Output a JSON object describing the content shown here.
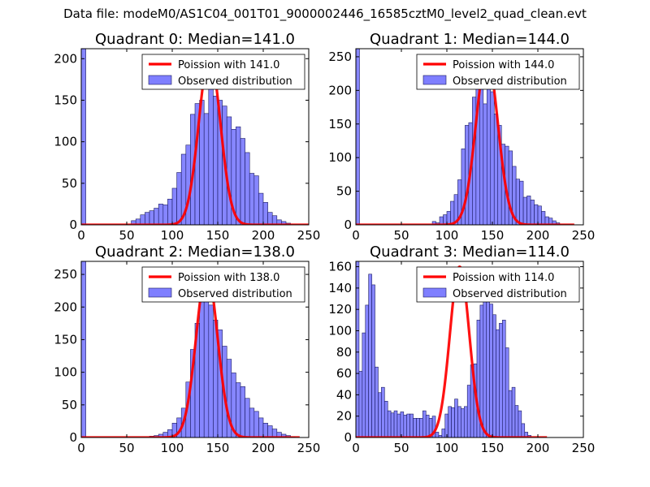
{
  "figure_title": "Data file: modeM0/AS1C04_001T01_9000002446_16585cztM0_level2_quad_clean.evt",
  "colors": {
    "poisson": "#ff0000",
    "bars_fill": "#7f7fff",
    "bars_edge": "#1a1a5e"
  },
  "chart_data": [
    {
      "type": "bar",
      "title": "Quadrant 0: Median=141.0",
      "xlim": [
        0,
        250
      ],
      "ylim": [
        0,
        212
      ],
      "xticks": [
        "0",
        "50",
        "100",
        "150",
        "200",
        "250"
      ],
      "yticks": [
        "0",
        "50",
        "100",
        "150",
        "200"
      ],
      "legend": {
        "position": "top-right",
        "line_label": "Poission with 141.0",
        "bar_label": "Observed distribution"
      },
      "poisson_mean": 141.0,
      "poisson_peak": 203,
      "poisson_range": [
        0,
        250
      ],
      "bin_width": 5,
      "bins": [
        [
          0,
          212
        ],
        [
          55,
          5
        ],
        [
          60,
          7
        ],
        [
          65,
          12
        ],
        [
          70,
          15
        ],
        [
          75,
          17
        ],
        [
          80,
          20
        ],
        [
          85,
          25
        ],
        [
          90,
          24
        ],
        [
          95,
          31
        ],
        [
          100,
          44
        ],
        [
          105,
          63
        ],
        [
          110,
          85
        ],
        [
          115,
          96
        ],
        [
          120,
          133
        ],
        [
          125,
          146
        ],
        [
          130,
          150
        ],
        [
          135,
          134
        ],
        [
          140,
          170
        ],
        [
          145,
          155
        ],
        [
          150,
          150
        ],
        [
          155,
          143
        ],
        [
          160,
          130
        ],
        [
          165,
          115
        ],
        [
          170,
          118
        ],
        [
          175,
          104
        ],
        [
          180,
          87
        ],
        [
          185,
          62
        ],
        [
          190,
          59
        ],
        [
          195,
          38
        ],
        [
          200,
          27
        ],
        [
          205,
          15
        ],
        [
          210,
          11
        ],
        [
          215,
          6
        ],
        [
          220,
          4
        ],
        [
          225,
          2
        ]
      ]
    },
    {
      "type": "bar",
      "title": "Quadrant 1: Median=144.0",
      "xlim": [
        0,
        250
      ],
      "ylim": [
        0,
        262
      ],
      "xticks": [
        "0",
        "50",
        "100",
        "150",
        "200",
        "250"
      ],
      "yticks": [
        "0",
        "50",
        "100",
        "150",
        "200",
        "250"
      ],
      "legend": {
        "position": "top-right",
        "line_label": "Poission with 144.0",
        "bar_label": "Observed distribution"
      },
      "poisson_mean": 144.0,
      "poisson_peak": 250,
      "poisson_range": [
        0,
        240
      ],
      "bin_width": 4,
      "bins": [
        [
          0,
          262
        ],
        [
          84,
          5
        ],
        [
          88,
          3
        ],
        [
          92,
          12
        ],
        [
          96,
          15
        ],
        [
          100,
          20
        ],
        [
          104,
          35
        ],
        [
          108,
          45
        ],
        [
          112,
          67
        ],
        [
          116,
          113
        ],
        [
          120,
          148
        ],
        [
          124,
          152
        ],
        [
          128,
          190
        ],
        [
          132,
          212
        ],
        [
          136,
          230
        ],
        [
          140,
          180
        ],
        [
          144,
          210
        ],
        [
          148,
          198
        ],
        [
          152,
          165
        ],
        [
          156,
          148
        ],
        [
          160,
          120
        ],
        [
          164,
          117
        ],
        [
          168,
          110
        ],
        [
          172,
          87
        ],
        [
          176,
          68
        ],
        [
          180,
          65
        ],
        [
          184,
          41
        ],
        [
          188,
          43
        ],
        [
          192,
          37
        ],
        [
          196,
          30
        ],
        [
          200,
          28
        ],
        [
          204,
          20
        ],
        [
          208,
          12
        ],
        [
          212,
          10
        ],
        [
          216,
          6
        ],
        [
          220,
          3
        ]
      ]
    },
    {
      "type": "bar",
      "title": "Quadrant 2: Median=138.0",
      "xlim": [
        0,
        250
      ],
      "ylim": [
        0,
        270
      ],
      "xticks": [
        "0",
        "50",
        "100",
        "150",
        "200",
        "250"
      ],
      "yticks": [
        "0",
        "50",
        "100",
        "150",
        "200",
        "250"
      ],
      "legend": {
        "position": "top-right",
        "line_label": "Poission with 138.0",
        "bar_label": "Observed distribution"
      },
      "poisson_mean": 138.0,
      "poisson_peak": 255,
      "poisson_range": [
        0,
        240
      ],
      "bin_width": 5,
      "bins": [
        [
          0,
          270
        ],
        [
          75,
          2
        ],
        [
          80,
          3
        ],
        [
          85,
          5
        ],
        [
          90,
          8
        ],
        [
          95,
          12
        ],
        [
          100,
          22
        ],
        [
          105,
          30
        ],
        [
          110,
          45
        ],
        [
          115,
          85
        ],
        [
          120,
          135
        ],
        [
          125,
          175
        ],
        [
          130,
          217
        ],
        [
          135,
          230
        ],
        [
          140,
          203
        ],
        [
          145,
          180
        ],
        [
          150,
          165
        ],
        [
          155,
          140
        ],
        [
          160,
          120
        ],
        [
          165,
          99
        ],
        [
          170,
          84
        ],
        [
          175,
          78
        ],
        [
          180,
          60
        ],
        [
          185,
          45
        ],
        [
          190,
          40
        ],
        [
          195,
          30
        ],
        [
          200,
          22
        ],
        [
          205,
          18
        ],
        [
          210,
          13
        ],
        [
          215,
          8
        ],
        [
          220,
          5
        ],
        [
          225,
          3
        ],
        [
          230,
          1
        ]
      ]
    },
    {
      "type": "bar",
      "title": "Quadrant 3: Median=114.0",
      "xlim": [
        0,
        250
      ],
      "ylim": [
        0,
        165
      ],
      "xticks": [
        "0",
        "50",
        "100",
        "150",
        "200",
        "250"
      ],
      "yticks": [
        "0",
        "20",
        "40",
        "60",
        "80",
        "100",
        "120",
        "140",
        "160"
      ],
      "legend": {
        "position": "top-right",
        "line_label": "Poission with 114.0",
        "bar_label": "Observed distribution"
      },
      "poisson_mean": 114.0,
      "poisson_peak": 160,
      "poisson_range": [
        0,
        210
      ],
      "bin_width": 3.5,
      "bins": [
        [
          0,
          165
        ],
        [
          3.5,
          62
        ],
        [
          7,
          98
        ],
        [
          10.5,
          124
        ],
        [
          14,
          153
        ],
        [
          17.5,
          143
        ],
        [
          21,
          66
        ],
        [
          24.5,
          42
        ],
        [
          28,
          47
        ],
        [
          31.5,
          34
        ],
        [
          35,
          25
        ],
        [
          38.5,
          23
        ],
        [
          42,
          25
        ],
        [
          45.5,
          22
        ],
        [
          49,
          24
        ],
        [
          52.5,
          21
        ],
        [
          56,
          22
        ],
        [
          59.5,
          22
        ],
        [
          63,
          18
        ],
        [
          66.5,
          18
        ],
        [
          70,
          18
        ],
        [
          73.5,
          25
        ],
        [
          77,
          21
        ],
        [
          80.5,
          18
        ],
        [
          84,
          20
        ],
        [
          87.5,
          5
        ],
        [
          91,
          2
        ],
        [
          94.5,
          8
        ],
        [
          98,
          22
        ],
        [
          101.5,
          29
        ],
        [
          105,
          28
        ],
        [
          108.5,
          36
        ],
        [
          112,
          29
        ],
        [
          115.5,
          27
        ],
        [
          119,
          29
        ],
        [
          122.5,
          49
        ],
        [
          126,
          68
        ],
        [
          129.5,
          69
        ],
        [
          133,
          110
        ],
        [
          136.5,
          124
        ],
        [
          140,
          137
        ],
        [
          143.5,
          132
        ],
        [
          147,
          125
        ],
        [
          150.5,
          115
        ],
        [
          154,
          101
        ],
        [
          157.5,
          107
        ],
        [
          161,
          110
        ],
        [
          164.5,
          84
        ],
        [
          168,
          44
        ],
        [
          171.5,
          47
        ],
        [
          175,
          30
        ],
        [
          178.5,
          25
        ],
        [
          182,
          13
        ],
        [
          185.5,
          5
        ],
        [
          189,
          2
        ]
      ]
    }
  ]
}
